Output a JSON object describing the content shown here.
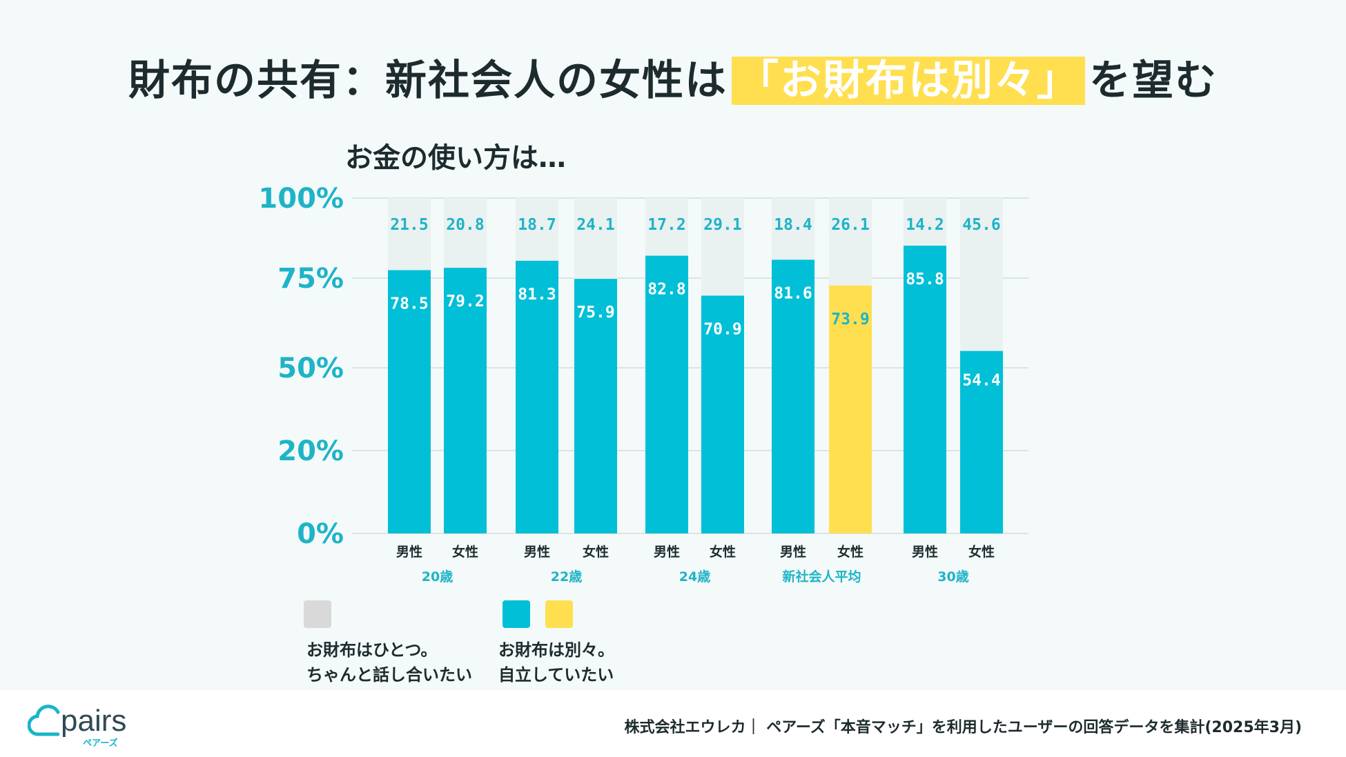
{
  "title": {
    "before": "財布の共有：新社会人の女性は",
    "highlight": "「お財布は別々」",
    "after": "を望む"
  },
  "subtitle": "お金の使い方は…",
  "chart_data": {
    "type": "bar",
    "stacked": true,
    "y_tick_labels": [
      "0%",
      "20%",
      "50%",
      "75%",
      "100%"
    ],
    "ylim": [
      0,
      100
    ],
    "groups": [
      {
        "label": "20歳",
        "bars": [
          {
            "label": "男性",
            "separate": 78.5,
            "one": 21.5,
            "highlight": false
          },
          {
            "label": "女性",
            "separate": 79.2,
            "one": 20.8,
            "highlight": false
          }
        ]
      },
      {
        "label": "22歳",
        "bars": [
          {
            "label": "男性",
            "separate": 81.3,
            "one": 18.7,
            "highlight": false
          },
          {
            "label": "女性",
            "separate": 75.9,
            "one": 24.1,
            "highlight": false
          }
        ]
      },
      {
        "label": "24歳",
        "bars": [
          {
            "label": "男性",
            "separate": 82.8,
            "one": 17.2,
            "highlight": false
          },
          {
            "label": "女性",
            "separate": 70.9,
            "one": 29.1,
            "highlight": false
          }
        ]
      },
      {
        "label": "新社会人平均",
        "bars": [
          {
            "label": "男性",
            "separate": 81.6,
            "one": 18.4,
            "highlight": false
          },
          {
            "label": "女性",
            "separate": 73.9,
            "one": 26.1,
            "highlight": true
          }
        ]
      },
      {
        "label": "30歳",
        "bars": [
          {
            "label": "男性",
            "separate": 85.8,
            "one": 14.2,
            "highlight": false
          },
          {
            "label": "女性",
            "separate": 54.4,
            "one": 45.6,
            "highlight": false
          }
        ]
      }
    ],
    "series": [
      {
        "name": "お財布はひとつ。ちゃんと話し合いたい",
        "key": "one"
      },
      {
        "name": "お財布は別々。自立していたい",
        "key": "separate"
      }
    ]
  },
  "legend": {
    "one_line1": "お財布はひとつ。",
    "one_line2": "ちゃんと話し合いたい",
    "separate_line1": "お財布は別々。",
    "separate_line2": "自立していたい"
  },
  "colors": {
    "separate": "#00bfd6",
    "one": "#e9f1f1",
    "highlight": "#ffdf4f",
    "axis": "#1fb3c7",
    "legend_one": "#d9d9d9"
  },
  "logo": {
    "text": "pairs",
    "sub": "ペアーズ"
  },
  "source": "株式会社エウレカ｜ ペアーズ「本音マッチ」を利用したユーザーの回答データを集計(2025年3月)"
}
